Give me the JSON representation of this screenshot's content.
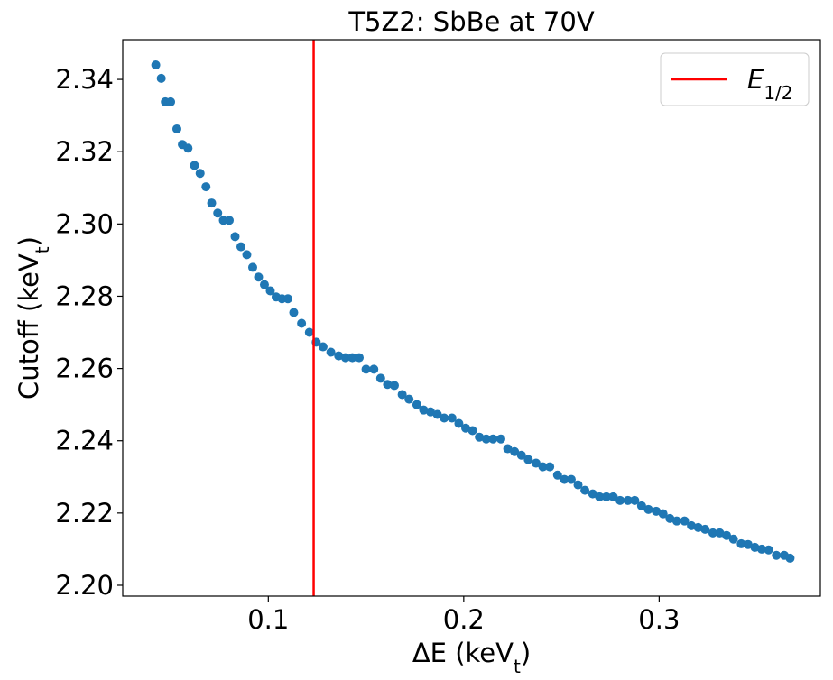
{
  "chart_data": {
    "type": "scatter",
    "title": "T5Z2: SbBe at 70V",
    "xlabel": {
      "main": "ΔE (keV",
      "sub": "t",
      "close": ")"
    },
    "ylabel": {
      "main": "Cutoff (keV",
      "sub": "t",
      "close": ")"
    },
    "xlim": [
      0.0255,
      0.3825
    ],
    "ylim": [
      2.197,
      2.351
    ],
    "xticks": [
      0.1,
      0.2,
      0.3
    ],
    "xtick_labels": [
      "0.1",
      "0.2",
      "0.3"
    ],
    "yticks": [
      2.2,
      2.22,
      2.24,
      2.26,
      2.28,
      2.3,
      2.32,
      2.34
    ],
    "ytick_labels": [
      "2.20",
      "2.22",
      "2.24",
      "2.26",
      "2.28",
      "2.30",
      "2.32",
      "2.34"
    ],
    "grid": false,
    "legend": {
      "placement": "top-right",
      "label_main": "E",
      "label_sub": "1/2"
    },
    "colors": {
      "points": "#1f77b4",
      "vline": "#ff0000"
    },
    "vline_x": 0.1232,
    "series": [
      {
        "x": [
          0.0424,
          0.0452,
          0.0473,
          0.05,
          0.0532,
          0.056,
          0.0589,
          0.0622,
          0.0651,
          0.0681,
          0.071,
          0.0741,
          0.077,
          0.08,
          0.083,
          0.086,
          0.089,
          0.092,
          0.095,
          0.098,
          0.101,
          0.104,
          0.107,
          0.11,
          0.113,
          0.117,
          0.121,
          0.1245,
          0.128,
          0.132,
          0.136,
          0.1395,
          0.143,
          0.1465,
          0.15,
          0.154,
          0.1575,
          0.161,
          0.1645,
          0.1685,
          0.172,
          0.176,
          0.1795,
          0.183,
          0.1865,
          0.19,
          0.194,
          0.1975,
          0.201,
          0.2045,
          0.208,
          0.2115,
          0.215,
          0.219,
          0.2225,
          0.226,
          0.2295,
          0.233,
          0.237,
          0.2405,
          0.244,
          0.248,
          0.2515,
          0.255,
          0.2585,
          0.262,
          0.266,
          0.2695,
          0.273,
          0.2765,
          0.28,
          0.284,
          0.2875,
          0.291,
          0.2945,
          0.2985,
          0.302,
          0.3055,
          0.309,
          0.313,
          0.3165,
          0.32,
          0.3235,
          0.3275,
          0.331,
          0.3345,
          0.338,
          0.342,
          0.3455,
          0.349,
          0.3525,
          0.356,
          0.36,
          0.364,
          0.367
        ],
        "y": [
          2.344,
          2.3403,
          2.3338,
          2.3338,
          2.3263,
          2.322,
          2.321,
          2.3162,
          2.314,
          2.3103,
          2.3058,
          2.303,
          2.301,
          2.301,
          2.2965,
          2.2937,
          2.2915,
          2.288,
          2.2853,
          2.2832,
          2.2815,
          2.2798,
          2.2793,
          2.2793,
          2.2755,
          2.2725,
          2.27,
          2.2673,
          2.266,
          2.2645,
          2.2635,
          2.263,
          2.263,
          2.263,
          2.2598,
          2.2598,
          2.2573,
          2.2556,
          2.2553,
          2.2528,
          2.2515,
          2.25,
          2.2485,
          2.248,
          2.2473,
          2.2463,
          2.2463,
          2.2448,
          2.2435,
          2.2428,
          2.241,
          2.2405,
          2.2405,
          2.2405,
          2.2378,
          2.237,
          2.236,
          2.2348,
          2.2338,
          2.2328,
          2.2328,
          2.2305,
          2.2293,
          2.2293,
          2.2278,
          2.2263,
          2.2253,
          2.2245,
          2.2245,
          2.2245,
          2.2235,
          2.2235,
          2.2235,
          2.222,
          2.221,
          2.2205,
          2.2198,
          2.2185,
          2.2178,
          2.2178,
          2.2165,
          2.216,
          2.2155,
          2.2145,
          2.2145,
          2.2138,
          2.2128,
          2.2115,
          2.2113,
          2.2105,
          2.21,
          2.2098,
          2.2083,
          2.2083,
          2.2075
        ]
      }
    ]
  }
}
